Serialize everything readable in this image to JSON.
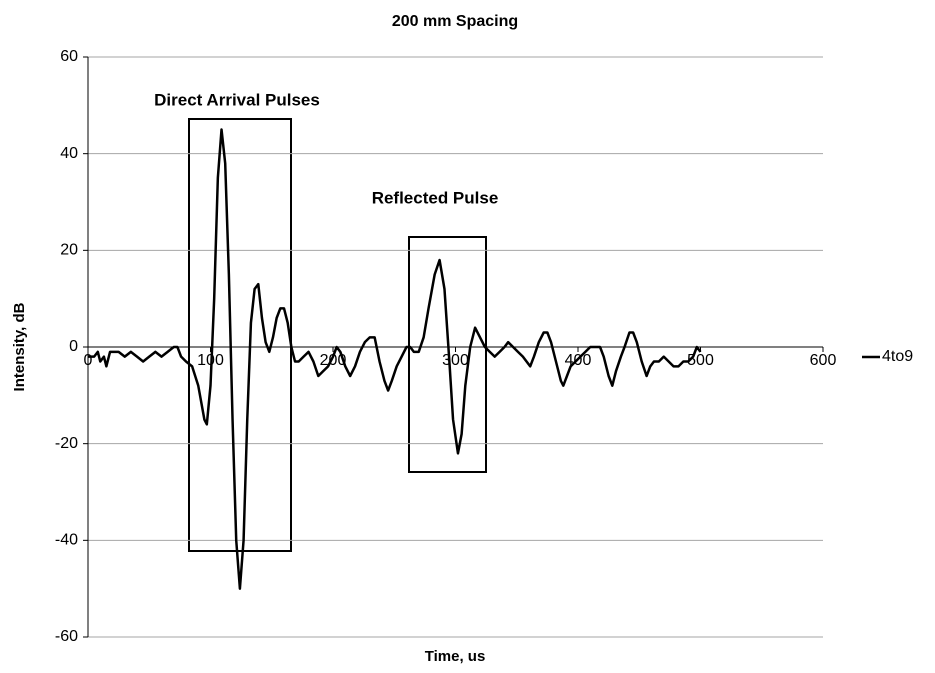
{
  "chart_data": {
    "type": "line",
    "title": "200 mm Spacing",
    "x_label": "Time, us",
    "y_label": "Intensity, dB",
    "annotations": [
      "Direct Arrival Pulses",
      "Reflected Pulse"
    ],
    "x": [
      0,
      5,
      8,
      10,
      13,
      15,
      18,
      25,
      30,
      35,
      40,
      45,
      50,
      55,
      60,
      65,
      70,
      73,
      76,
      80,
      85,
      90,
      95,
      97,
      100,
      103,
      106,
      109,
      112,
      115,
      118,
      121,
      124,
      127,
      130,
      133,
      136,
      139,
      142,
      145,
      148,
      151,
      154,
      157,
      160,
      163,
      166,
      169,
      172,
      176,
      180,
      184,
      188,
      192,
      196,
      200,
      203,
      206,
      210,
      214,
      218,
      222,
      226,
      230,
      234,
      238,
      242,
      245,
      248,
      252,
      256,
      260,
      263,
      266,
      270,
      274,
      278,
      283,
      287,
      291,
      295,
      298,
      302,
      305,
      308,
      312,
      316,
      320,
      324,
      328,
      332,
      336,
      340,
      343,
      347,
      351,
      355,
      358,
      361,
      364,
      368,
      372,
      375,
      378,
      382,
      386,
      388,
      391,
      394,
      398,
      402,
      406,
      410,
      414,
      418,
      421,
      425,
      428,
      431,
      435,
      438,
      442,
      445,
      448,
      452,
      456,
      459,
      462,
      466,
      470,
      474,
      478,
      482,
      486,
      490,
      494,
      497,
      500
    ],
    "series": [
      {
        "name": "4to9",
        "color": "#000000",
        "values": [
          -2,
          -2,
          -1,
          -3,
          -2,
          -4,
          -1,
          -1,
          -2,
          -1,
          -2,
          -3,
          -2,
          -1,
          -2,
          -1,
          0,
          0,
          -2,
          -3,
          -4,
          -8,
          -15,
          -16,
          -8,
          10,
          35,
          45,
          38,
          15,
          -15,
          -40,
          -50,
          -40,
          -15,
          5,
          12,
          13,
          6,
          1,
          -1,
          2,
          6,
          8,
          8,
          5,
          0,
          -3,
          -3,
          -2,
          -1,
          -3,
          -6,
          -5,
          -4,
          -2,
          0,
          -1,
          -4,
          -6,
          -4,
          -1,
          1,
          2,
          2,
          -3,
          -7,
          -9,
          -7,
          -4,
          -2,
          0,
          0,
          -1,
          -1,
          2,
          8,
          15,
          18,
          12,
          -3,
          -15,
          -22,
          -18,
          -8,
          0,
          4,
          2,
          0,
          -1,
          -2,
          -1,
          0,
          1,
          0,
          -1,
          -2,
          -3,
          -4,
          -2,
          1,
          3,
          3,
          1,
          -3,
          -7,
          -8,
          -6,
          -4,
          -3,
          -2,
          -1,
          0,
          0,
          0,
          -2,
          -6,
          -8,
          -5,
          -2,
          0,
          3,
          3,
          1,
          -3,
          -6,
          -4,
          -3,
          -3,
          -2,
          -3,
          -4,
          -4,
          -3,
          -3,
          -2,
          0,
          -1
        ]
      }
    ],
    "xlim": [
      0,
      600
    ],
    "xticks": [
      0,
      100,
      200,
      300,
      400,
      500,
      600
    ],
    "ylim": [
      -60,
      60
    ],
    "yticks": [
      -60,
      -40,
      -20,
      0,
      20,
      40,
      60
    ],
    "grid": true,
    "legend": "right"
  }
}
